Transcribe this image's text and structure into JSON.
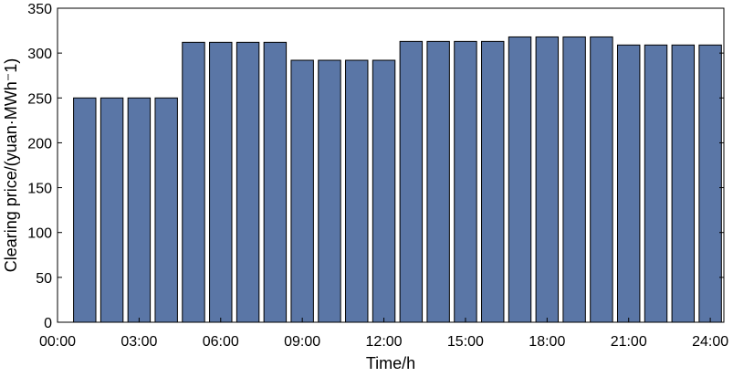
{
  "chart_data": {
    "type": "bar",
    "title": "",
    "xlabel": "Time/h",
    "ylabel": "Clearing price/(yuan·MWh⁻1)",
    "ylim": [
      0,
      350
    ],
    "yticks": [
      0,
      50,
      100,
      150,
      200,
      250,
      300,
      350
    ],
    "xlim": [
      0,
      24.5
    ],
    "xticks": [
      0,
      3,
      6,
      9,
      12,
      15,
      18,
      21,
      24
    ],
    "xtick_labels": [
      "00:00",
      "03:00",
      "06:00",
      "09:00",
      "12:00",
      "15:00",
      "18:00",
      "21:00",
      "24:00"
    ],
    "hours": [
      1,
      2,
      3,
      4,
      5,
      6,
      7,
      8,
      9,
      10,
      11,
      12,
      13,
      14,
      15,
      16,
      17,
      18,
      19,
      20,
      21,
      22,
      23,
      24
    ],
    "values": [
      250,
      250,
      250,
      250,
      312,
      312,
      312,
      312,
      292,
      292,
      292,
      292,
      313,
      313,
      313,
      313,
      318,
      318,
      318,
      318,
      309,
      309,
      309,
      309
    ],
    "grid": false,
    "colors": {
      "bar_fill": "#5a76a6",
      "bar_stroke": "#000000",
      "axis": "#000000"
    }
  }
}
